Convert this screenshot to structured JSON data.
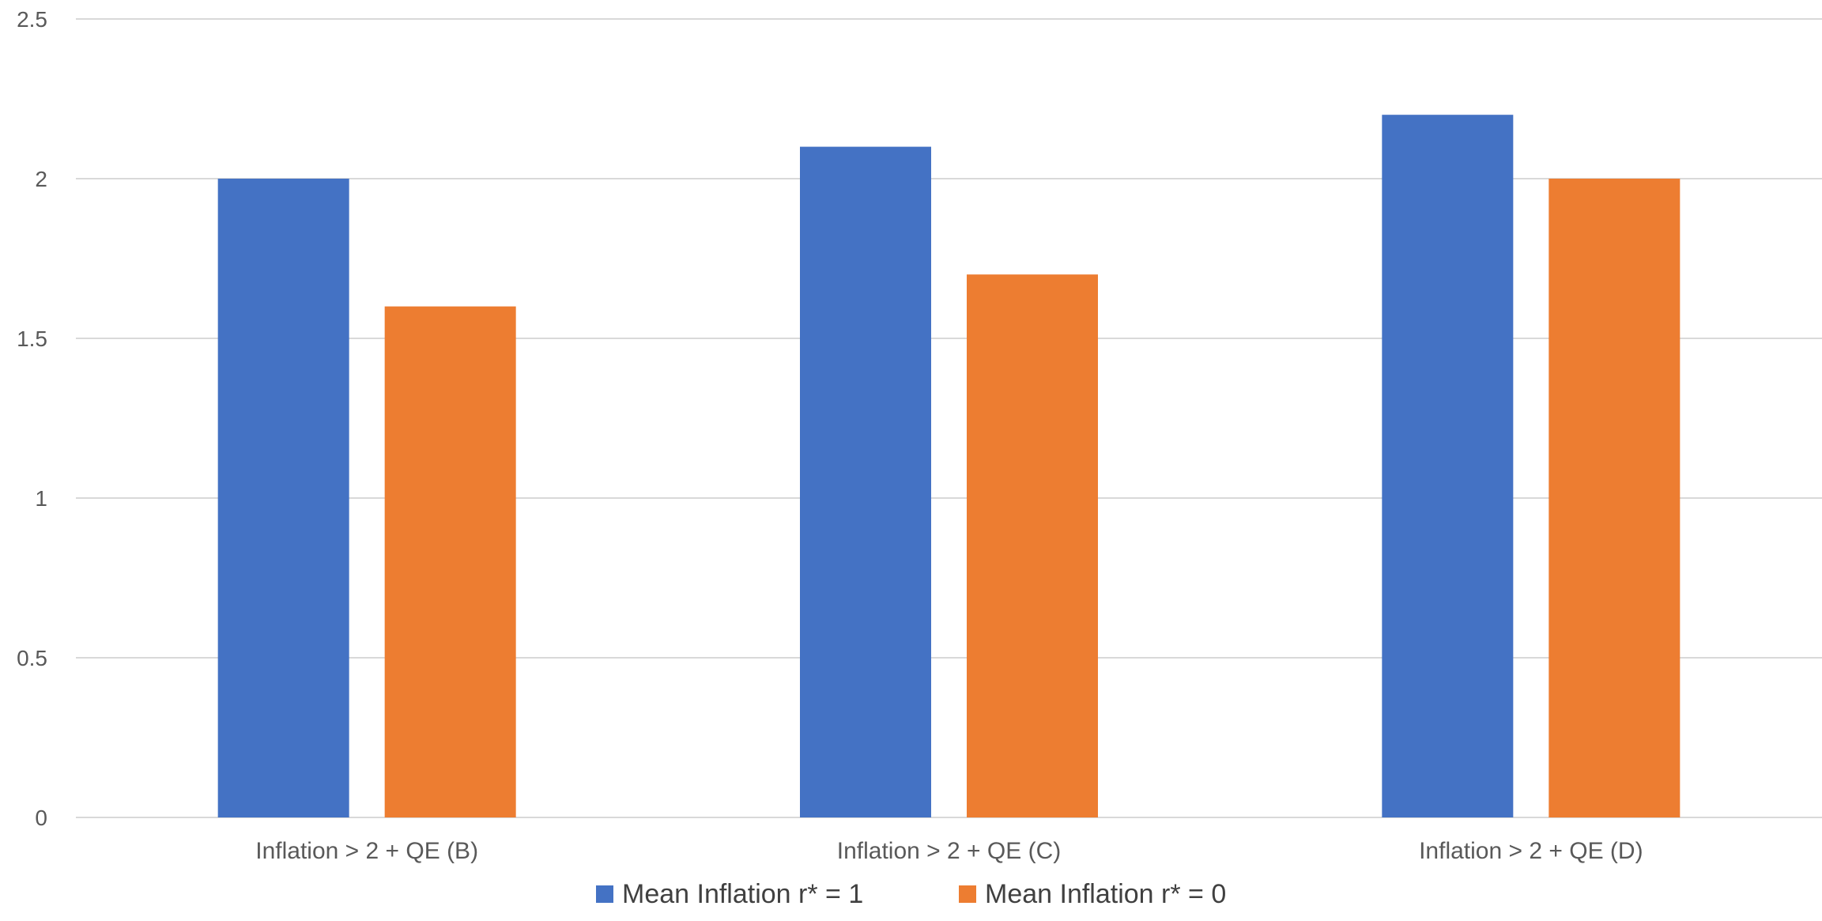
{
  "chart_data": {
    "type": "bar",
    "title": "",
    "xlabel": "",
    "ylabel": "",
    "categories": [
      "Inflation > 2 + QE (B)",
      "Inflation > 2 + QE (C)",
      "Inflation > 2 + QE (D)"
    ],
    "series": [
      {
        "name": "Mean Inflation r* = 1",
        "values": [
          2.0,
          2.1,
          2.2
        ],
        "color": "#4472C4"
      },
      {
        "name": "Mean Inflation r* = 0",
        "values": [
          1.6,
          1.7,
          2.0
        ],
        "color": "#ED7D31"
      }
    ],
    "ylim": [
      0,
      2.5
    ],
    "yticks": [
      "0",
      "0.5",
      "1",
      "1.5",
      "2",
      "2.5"
    ],
    "grid": true,
    "legend_position": "bottom"
  }
}
